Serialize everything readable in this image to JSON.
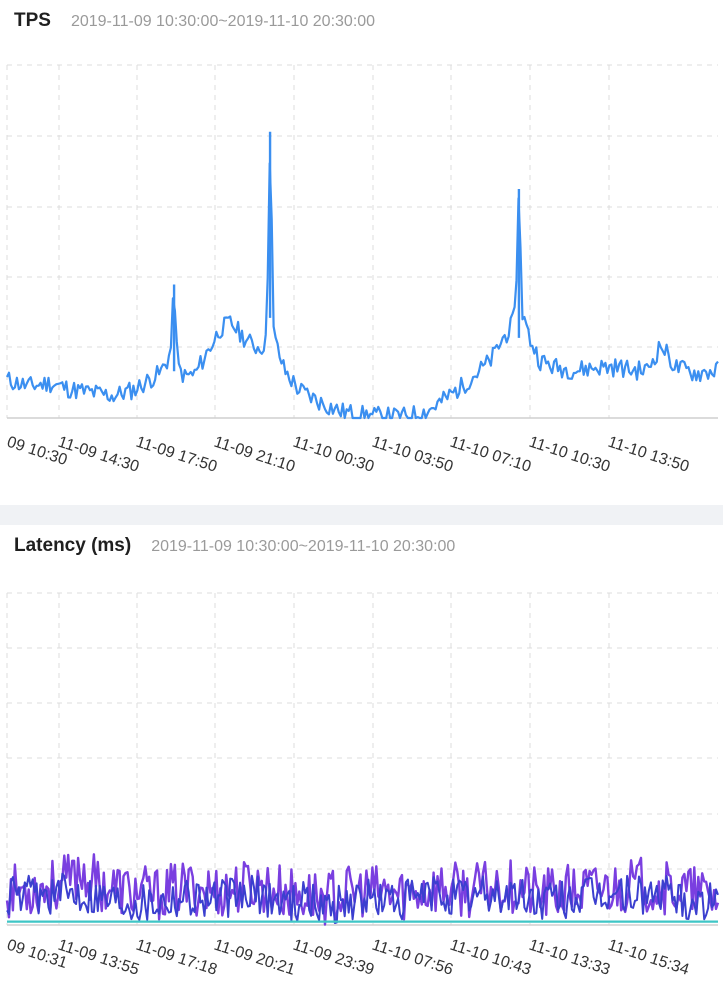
{
  "chart_data": [
    {
      "type": "line",
      "title": "TPS",
      "subtitle": "2019-11-09 10:30:00~2019-11-10 20:30:00",
      "xlabel": "",
      "ylabel": "",
      "grid": true,
      "y_axis_labels_visible": false,
      "categories": [
        "09 10:30",
        "11-09 14:30",
        "11-09 17:50",
        "11-09 21:10",
        "11-10 00:30",
        "11-10 03:50",
        "11-10 07:10",
        "11-10 10:30",
        "11-10 13:50"
      ],
      "ylim": [
        0,
        100
      ],
      "series": [
        {
          "color": "#3b8ff0",
          "x": [
            0.0,
            0.03,
            0.06,
            0.09,
            0.12,
            0.15,
            0.18,
            0.2,
            0.215,
            0.23,
            0.235,
            0.24,
            0.25,
            0.265,
            0.28,
            0.3,
            0.315,
            0.33,
            0.345,
            0.355,
            0.365,
            0.37,
            0.375,
            0.38,
            0.39,
            0.41,
            0.44,
            0.47,
            0.5,
            0.53,
            0.56,
            0.59,
            0.61,
            0.64,
            0.66,
            0.68,
            0.695,
            0.71,
            0.715,
            0.72,
            0.725,
            0.735,
            0.75,
            0.77,
            0.8,
            0.83,
            0.86,
            0.88,
            0.9,
            0.91,
            0.92,
            0.94,
            0.97,
            1.0
          ],
          "values": [
            12,
            10,
            11,
            9,
            8,
            7,
            9,
            12,
            14,
            20,
            42,
            16,
            13,
            14,
            20,
            28,
            30,
            26,
            23,
            22,
            24,
            90,
            27,
            22,
            15,
            9,
            5,
            2,
            1,
            0.5,
            0.5,
            2,
            5,
            10,
            14,
            18,
            24,
            29,
            33,
            72,
            33,
            25,
            18,
            16,
            15,
            16,
            16,
            15,
            15,
            19,
            23,
            16,
            14,
            15
          ]
        }
      ]
    },
    {
      "type": "line",
      "title": "Latency (ms)",
      "subtitle": "2019-11-09 10:30:00~2019-11-10 20:30:00",
      "xlabel": "",
      "ylabel": "",
      "grid": true,
      "y_axis_labels_visible": false,
      "categories": [
        "09 10:31",
        "11-09 13:55",
        "11-09 17:18",
        "11-09 20:21",
        "11-09 23:39",
        "11-10 07:56",
        "11-10 10:43",
        "11-10 13:33",
        "11-10 15:34"
      ],
      "ylim": [
        0,
        100
      ],
      "series": [
        {
          "color": "#7a3fe0",
          "x": [
            0.0,
            0.05,
            0.09,
            0.1,
            0.13,
            0.17,
            0.21,
            0.25,
            0.3,
            0.35,
            0.4,
            0.45,
            0.5,
            0.55,
            0.6,
            0.65,
            0.7,
            0.75,
            0.8,
            0.85,
            0.9,
            0.95,
            1.0
          ],
          "values": [
            10,
            11,
            13,
            16,
            12,
            10,
            9,
            11,
            10,
            12,
            9,
            8,
            10,
            9,
            11,
            10,
            12,
            9,
            10,
            11,
            12,
            10,
            8
          ]
        },
        {
          "color": "#3b3fcf",
          "x": [
            0.0,
            0.05,
            0.1,
            0.15,
            0.2,
            0.25,
            0.3,
            0.35,
            0.4,
            0.45,
            0.5,
            0.55,
            0.6,
            0.65,
            0.7,
            0.75,
            0.8,
            0.85,
            0.9,
            0.95,
            1.0
          ],
          "values": [
            8,
            9,
            10,
            8,
            7,
            9,
            8,
            9,
            7,
            6,
            8,
            7,
            9,
            8,
            9,
            7,
            8,
            9,
            9,
            8,
            6
          ]
        },
        {
          "color": "#3fc6c6",
          "x": [
            0.0,
            1.0
          ],
          "values": [
            1,
            1
          ]
        }
      ]
    }
  ]
}
